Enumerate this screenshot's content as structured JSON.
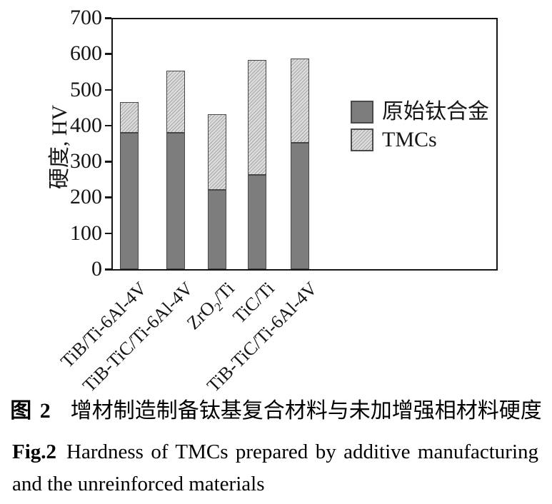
{
  "chart_data": {
    "type": "bar",
    "stacked": true,
    "ylabel": "硬度, HV",
    "xlabel": "",
    "ylim": [
      0,
      700
    ],
    "yticks": [
      0,
      100,
      200,
      300,
      400,
      500,
      600,
      700
    ],
    "grid": false,
    "legend_position": "inside-right",
    "categories": [
      "TiB/Ti-6Al-4V",
      "TiB-TiC/Ti-6Al-4V",
      "ZrO₂/Ti",
      "TiC/Ti",
      "TiB-TiC/Ti-6Al-4V"
    ],
    "series": [
      {
        "name": "原始钛合金",
        "values": [
          380,
          380,
          220,
          263,
          352
        ]
      },
      {
        "name": "TMCs",
        "values": [
          465,
          553,
          432,
          583,
          586
        ]
      }
    ],
    "series_note": "原始钛合金 values = solid lower segment tops; TMCs values = total (hatched) bar tops, HV",
    "colors": {
      "alloy_fill": "#7d7d7d",
      "tmc_fill": "#dcdcdc",
      "tmc_hatch_line": "#a7a7a7",
      "bar_border": "#474747",
      "axis": "#161616"
    }
  },
  "caption": {
    "fig_label_zh": "图 2",
    "title_zh": "增材制造制备钛基复合材料与未加增强相材料硬度",
    "fig_label_en": "Fig.2",
    "title_en_line1": "Hardness of TMCs prepared by additive manufacturing",
    "title_en_line2": "and the unreinforced materials"
  }
}
